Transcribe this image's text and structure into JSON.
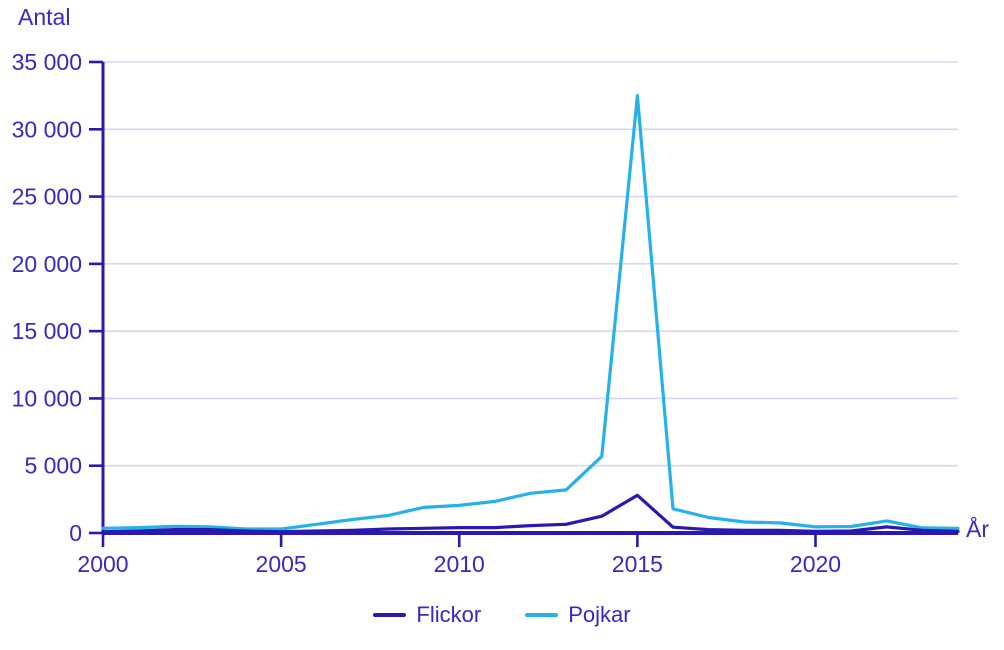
{
  "colors": {
    "background": "#ffffff",
    "text": "#3629c4",
    "axis": "#2a19b0",
    "grid": "#d9d5f0",
    "flickor": "#2a19b0",
    "pojkar": "#25b2e8"
  },
  "chart_data": {
    "type": "line",
    "title": "",
    "xlabel": "År",
    "ylabel": "Antal",
    "x": [
      2000,
      2001,
      2002,
      2003,
      2004,
      2005,
      2006,
      2007,
      2008,
      2009,
      2010,
      2011,
      2012,
      2013,
      2014,
      2015,
      2016,
      2017,
      2018,
      2019,
      2020,
      2021,
      2022,
      2023,
      2024
    ],
    "series": [
      {
        "name": "Flickor",
        "color": "#2a19b0",
        "values": [
          100,
          150,
          250,
          250,
          150,
          100,
          150,
          200,
          300,
          350,
          400,
          400,
          550,
          650,
          1250,
          2800,
          430,
          250,
          200,
          200,
          120,
          150,
          450,
          200,
          120
        ]
      },
      {
        "name": "Pojkar",
        "color": "#25b2e8",
        "values": [
          350,
          400,
          500,
          450,
          300,
          300,
          650,
          1000,
          1300,
          1900,
          2050,
          2350,
          2950,
          3200,
          5700,
          32500,
          1800,
          1150,
          820,
          750,
          450,
          480,
          900,
          380,
          350
        ]
      }
    ],
    "xlim": [
      2000,
      2024
    ],
    "ylim": [
      0,
      35000
    ],
    "xticks": [
      2000,
      2005,
      2010,
      2015,
      2020
    ],
    "yticks": [
      0,
      5000,
      10000,
      15000,
      20000,
      25000,
      30000,
      35000
    ],
    "grid": "horizontal",
    "legend_position": "bottom-center",
    "thousands_separator": " "
  }
}
